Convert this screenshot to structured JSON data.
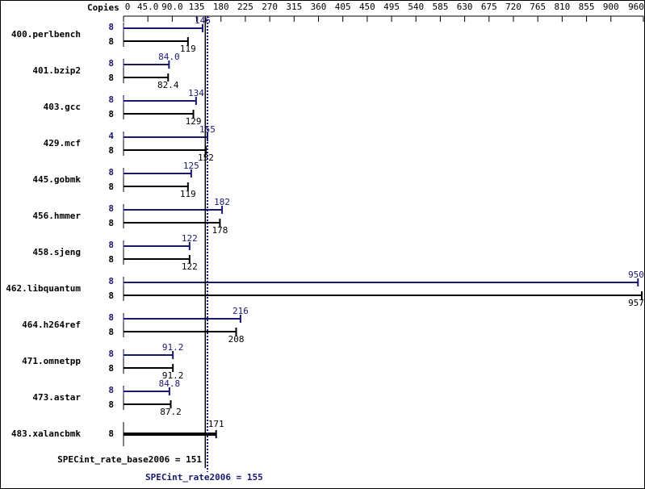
{
  "chart_data": {
    "type": "hbar-pair",
    "copies_label": "Copies",
    "categories": [
      "400.perlbench",
      "401.bzip2",
      "403.gcc",
      "429.mcf",
      "445.gobmk",
      "456.hmmer",
      "458.sjeng",
      "462.libquantum",
      "464.h264ref",
      "471.omnetpp",
      "473.astar",
      "483.xalancbmk"
    ],
    "series": [
      {
        "name": "peak",
        "color": "#191970",
        "copies": [
          8,
          8,
          8,
          4,
          8,
          8,
          8,
          8,
          8,
          8,
          8,
          null
        ],
        "values": [
          146,
          84.0,
          134,
          155,
          125,
          182,
          122,
          950,
          216,
          91.2,
          84.8,
          null
        ],
        "value_labels": [
          "146",
          "84.0",
          "134",
          "155",
          "125",
          "182",
          "122",
          "950",
          "216",
          "91.2",
          "84.8",
          null
        ]
      },
      {
        "name": "base",
        "color": "#000000",
        "copies": [
          8,
          8,
          8,
          8,
          8,
          8,
          8,
          8,
          8,
          8,
          8,
          8
        ],
        "values": [
          119,
          82.4,
          129,
          152,
          119,
          178,
          122,
          957,
          208,
          91.2,
          87.2,
          171
        ]
      }
    ],
    "xlim": [
      0,
      960
    ],
    "xticks": [
      0,
      {
        "value": 45,
        "label": "45.0"
      },
      {
        "value": 90,
        "label": "90.0"
      },
      135,
      180,
      225,
      270,
      315,
      360,
      405,
      450,
      495,
      540,
      585,
      630,
      675,
      720,
      765,
      810,
      855,
      900,
      960
    ],
    "reference_lines": [
      {
        "label": "SPECint_rate_base2006 =",
        "value": 151,
        "color": "#000000",
        "dash": false
      },
      {
        "label": "SPECint_rate2006 =",
        "value": 155,
        "color": "#191970",
        "dash": true
      }
    ]
  }
}
